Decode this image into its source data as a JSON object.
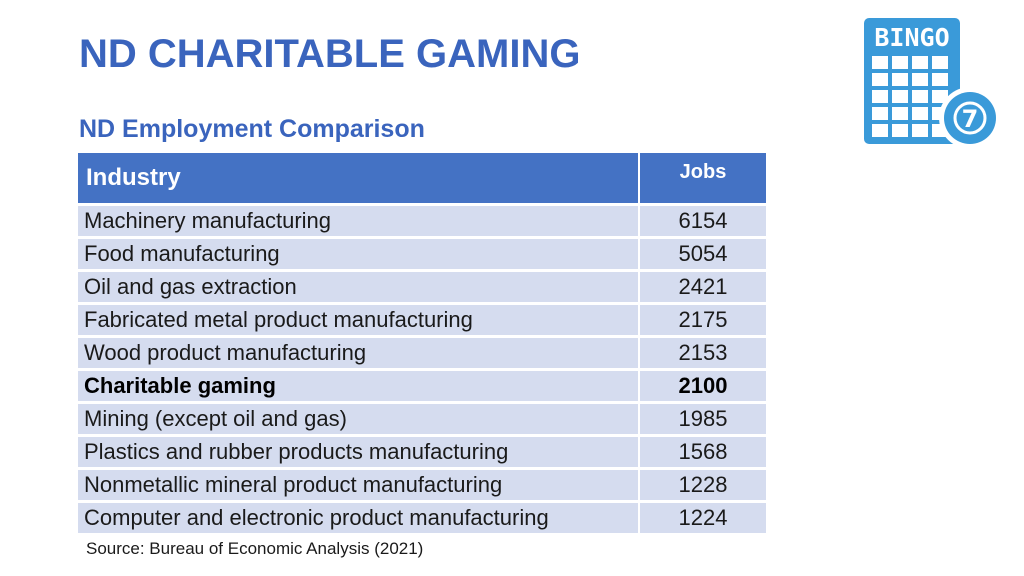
{
  "slide": {
    "title": "ND CHARITABLE GAMING",
    "subtitle": "ND Employment Comparison",
    "source": "Source: Bureau of Economic Analysis (2021)"
  },
  "logo": {
    "text": "BINGO",
    "ball_number": "7",
    "color": "#3a9ad9",
    "icon": "bingo-card-icon"
  },
  "table": {
    "header_industry": "Industry",
    "header_jobs": "Jobs",
    "header_color": "#4472c4",
    "row_color": "#d5dcef",
    "rows": [
      {
        "industry": "Machinery manufacturing",
        "jobs": "6154"
      },
      {
        "industry": "Food manufacturing",
        "jobs": "5054"
      },
      {
        "industry": "Oil and gas extraction",
        "jobs": "2421"
      },
      {
        "industry": "Fabricated metal product manufacturing",
        "jobs": "2175"
      },
      {
        "industry": "Wood product manufacturing",
        "jobs": "2153"
      },
      {
        "industry": "Charitable gaming",
        "jobs": "2100",
        "highlight": true
      },
      {
        "industry": "Mining (except oil and gas)",
        "jobs": "1985"
      },
      {
        "industry": "Plastics and rubber products manufacturing",
        "jobs": "1568"
      },
      {
        "industry": "Nonmetallic mineral product manufacturing",
        "jobs": "1228"
      },
      {
        "industry": "Computer and electronic product manufacturing",
        "jobs": "1224"
      }
    ]
  }
}
